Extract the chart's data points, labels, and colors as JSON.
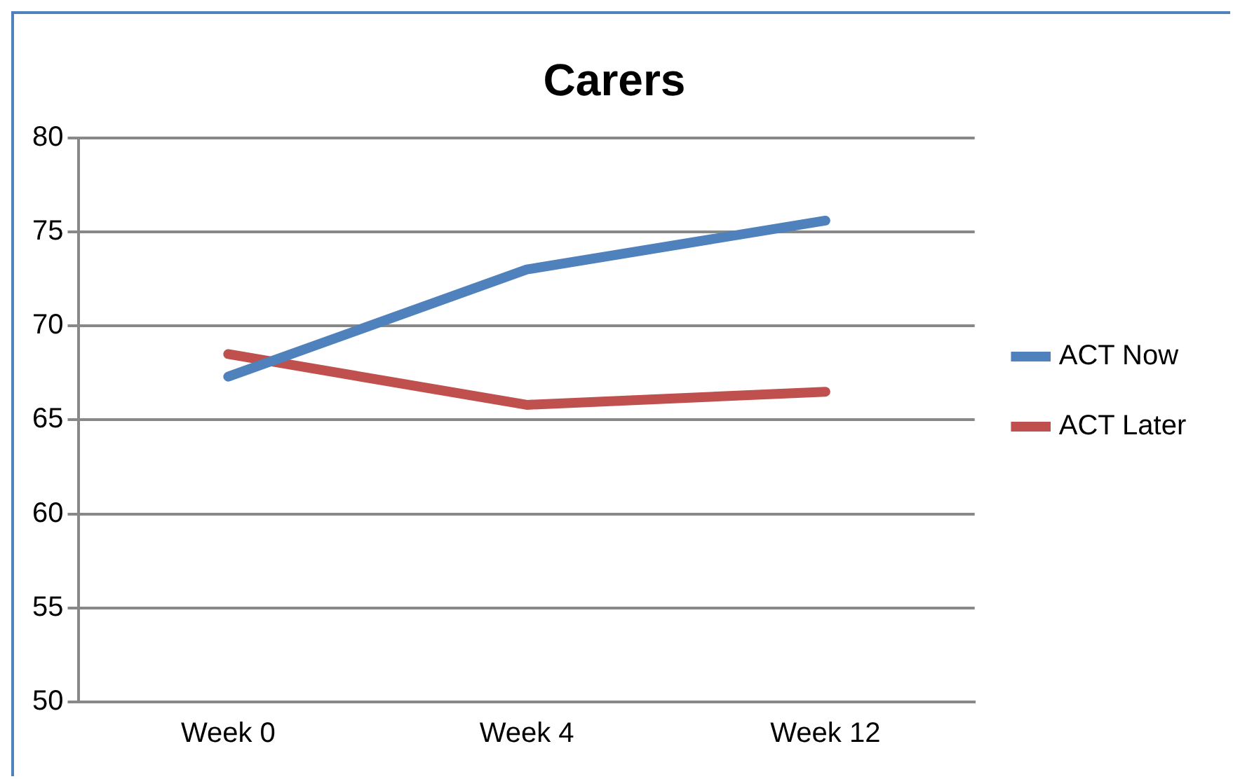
{
  "chart_data": {
    "type": "line",
    "title": "Carers",
    "categories": [
      "Week 0",
      "Week 4",
      "Week 12"
    ],
    "series": [
      {
        "name": "ACT Now",
        "color": "#4f81bd",
        "values": [
          67.3,
          73.0,
          75.6
        ]
      },
      {
        "name": "ACT Later",
        "color": "#c0504d",
        "values": [
          68.5,
          65.8,
          66.5
        ]
      }
    ],
    "ylim": [
      50,
      80
    ],
    "yticks": [
      50,
      55,
      60,
      65,
      70,
      75,
      80
    ],
    "grid": "y",
    "legend": "right",
    "marker": "none",
    "line_style": "solid"
  }
}
